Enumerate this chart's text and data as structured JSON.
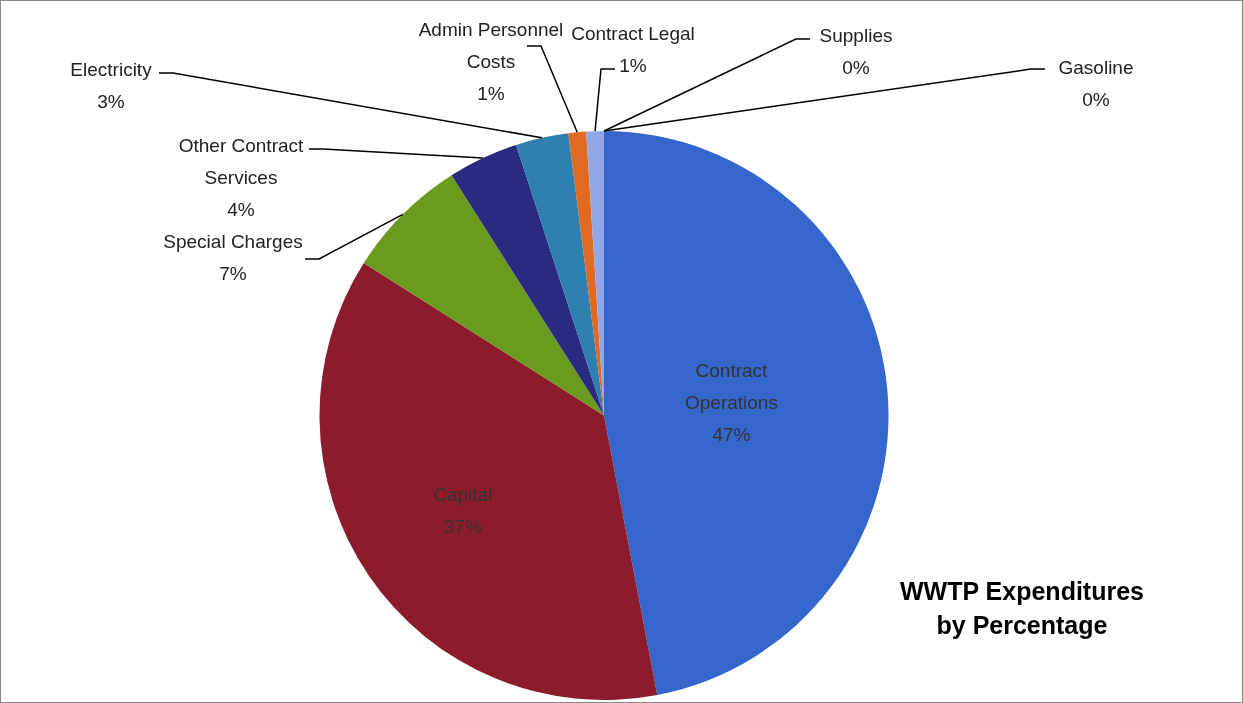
{
  "chart_data": {
    "type": "pie",
    "title": "WWTP Expenditures by Percentage",
    "categories": [
      "Contract Operations",
      "Capital",
      "Special Charges",
      "Other Contract Services",
      "Electricity",
      "Admin Personnel Costs",
      "Contract Legal",
      "Supplies",
      "Gasoline"
    ],
    "values": [
      47,
      37,
      7,
      4,
      3,
      1,
      1,
      0,
      0
    ],
    "colors": [
      "#3566cc",
      "#8c1c2c",
      "#6a9a1e",
      "#2a2a80",
      "#2f7fb0",
      "#e06a22",
      "#8fa8e8",
      "#b08888",
      "#b8c060"
    ],
    "value_labels": [
      "47%",
      "37%",
      "7%",
      "4%",
      "3%",
      "1%",
      "1%",
      "0%",
      "0%"
    ],
    "legend": false
  }
}
